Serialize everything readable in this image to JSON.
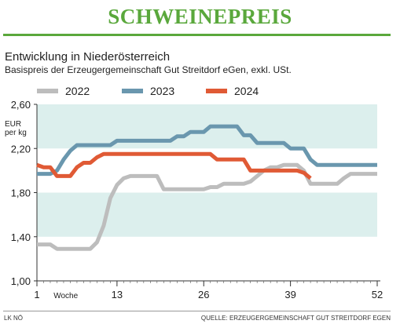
{
  "header": {
    "title": "SCHWEINEPREIS",
    "subtitle": "Entwicklung in Niederösterreich",
    "description": "Basispreis der Erzeugergemeinschaft Gut Streitdorf eGen, exkl. USt."
  },
  "footer": {
    "left": "LK NÖ",
    "right": "QUELLE: ERZEUGERGEMEINSCHAFT GUT STREITDORF EGEN"
  },
  "colors": {
    "title_green": "#5aa83c",
    "band": "#dcefed",
    "series_2022": "#bdbdbd",
    "series_2023": "#6a97ae",
    "series_2024": "#e05a35"
  },
  "chart_data": {
    "type": "line",
    "title": "",
    "xlabel": "Woche",
    "ylabel": "EUR per kg",
    "ylabel_lines": [
      "EUR",
      "per kg"
    ],
    "xlim": [
      1,
      52
    ],
    "ylim": [
      1.0,
      2.6
    ],
    "x_ticks": [
      1,
      13,
      26,
      39,
      52
    ],
    "x_tick_labels": [
      "1",
      "13",
      "26",
      "39",
      "52"
    ],
    "y_ticks": [
      1.0,
      1.4,
      1.8,
      2.2,
      2.6
    ],
    "y_tick_labels": [
      "1,00",
      "1,40",
      "1,80",
      "2,20",
      "2,60"
    ],
    "legend_position": "top",
    "series": [
      {
        "name": "2022",
        "color": "#bdbdbd",
        "x": [
          1,
          2,
          3,
          4,
          5,
          6,
          7,
          8,
          9,
          10,
          11,
          12,
          13,
          14,
          15,
          16,
          17,
          18,
          19,
          20,
          21,
          22,
          23,
          24,
          25,
          26,
          27,
          28,
          29,
          30,
          31,
          32,
          33,
          34,
          35,
          36,
          37,
          38,
          39,
          40,
          41,
          42,
          43,
          44,
          45,
          46,
          47,
          48,
          49,
          50,
          51,
          52
        ],
        "values": [
          1.33,
          1.33,
          1.33,
          1.29,
          1.29,
          1.29,
          1.29,
          1.29,
          1.29,
          1.35,
          1.5,
          1.75,
          1.87,
          1.93,
          1.95,
          1.95,
          1.95,
          1.95,
          1.95,
          1.83,
          1.83,
          1.83,
          1.83,
          1.83,
          1.83,
          1.83,
          1.85,
          1.85,
          1.88,
          1.88,
          1.88,
          1.88,
          1.9,
          1.95,
          2.0,
          2.03,
          2.03,
          2.05,
          2.05,
          2.05,
          2.0,
          1.88,
          1.88,
          1.88,
          1.88,
          1.88,
          1.93,
          1.97,
          1.97,
          1.97,
          1.97,
          1.97
        ]
      },
      {
        "name": "2023",
        "color": "#6a97ae",
        "x": [
          1,
          2,
          3,
          4,
          5,
          6,
          7,
          8,
          9,
          10,
          11,
          12,
          13,
          14,
          15,
          16,
          17,
          18,
          19,
          20,
          21,
          22,
          23,
          24,
          25,
          26,
          27,
          28,
          29,
          30,
          31,
          32,
          33,
          34,
          35,
          36,
          37,
          38,
          39,
          40,
          41,
          42,
          43,
          44,
          45,
          46,
          47,
          48,
          49,
          50,
          51,
          52
        ],
        "values": [
          1.97,
          1.97,
          1.97,
          2.0,
          2.1,
          2.18,
          2.23,
          2.23,
          2.23,
          2.23,
          2.23,
          2.23,
          2.27,
          2.27,
          2.27,
          2.27,
          2.27,
          2.27,
          2.27,
          2.27,
          2.27,
          2.31,
          2.31,
          2.35,
          2.35,
          2.35,
          2.4,
          2.4,
          2.4,
          2.4,
          2.4,
          2.32,
          2.32,
          2.25,
          2.25,
          2.25,
          2.25,
          2.25,
          2.2,
          2.2,
          2.2,
          2.1,
          2.05,
          2.05,
          2.05,
          2.05,
          2.05,
          2.05,
          2.05,
          2.05,
          2.05,
          2.05
        ]
      },
      {
        "name": "2024",
        "color": "#e05a35",
        "x": [
          1,
          2,
          3,
          4,
          5,
          6,
          7,
          8,
          9,
          10,
          11,
          12,
          13,
          14,
          15,
          16,
          17,
          18,
          19,
          20,
          21,
          22,
          23,
          24,
          25,
          26,
          27,
          28,
          29,
          30,
          31,
          32,
          33,
          34,
          35,
          36,
          37,
          38,
          39,
          40,
          41,
          42
        ],
        "values": [
          2.05,
          2.03,
          2.03,
          1.95,
          1.95,
          1.95,
          2.03,
          2.07,
          2.07,
          2.12,
          2.15,
          2.15,
          2.15,
          2.15,
          2.15,
          2.15,
          2.15,
          2.15,
          2.15,
          2.15,
          2.15,
          2.15,
          2.15,
          2.15,
          2.15,
          2.15,
          2.15,
          2.1,
          2.1,
          2.1,
          2.1,
          2.1,
          2.0,
          2.0,
          2.0,
          2.0,
          2.0,
          2.0,
          2.0,
          2.0,
          1.98,
          1.93
        ]
      }
    ]
  }
}
